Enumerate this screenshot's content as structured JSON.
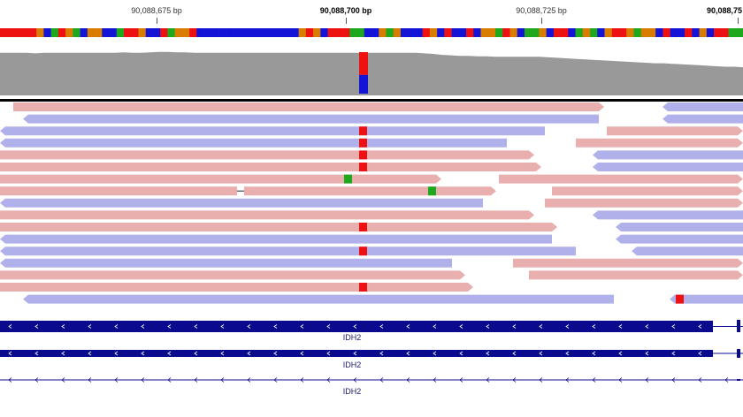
{
  "ruler": {
    "ticks": [
      {
        "label": "90,088,675 bp",
        "bold": false
      },
      {
        "label": "90,088,700 bp",
        "bold": true
      },
      {
        "label": "90,088,725 bp",
        "bold": false
      },
      {
        "label": "90,088,75",
        "bold": true
      }
    ]
  },
  "colors": {
    "base_A": "#1ea81e",
    "base_C": "#1414d6",
    "base_G": "#d97d00",
    "base_T": "#ee1111",
    "coverage": "#999999",
    "read_forward": "#e9aeae",
    "read_reverse": "#b0b0ea",
    "gene": "#0a0a8e"
  },
  "reference_sequence": "TTTTTGCATGACGGCCATTGCCTAGGTCCCCCCCCCCCCCCGTGCTTTAACCGAGCCCTGCTCCTCGGATGCAAGCTTCAGACGTTGAGGCTCCTCGCTTAA",
  "coverage_levels": [
    0.86,
    0.86,
    0.86,
    0.86,
    0.85,
    0.86,
    0.86,
    0.86,
    0.86,
    0.86,
    0.86,
    0.86,
    0.86,
    0.86,
    0.87,
    0.86,
    0.86,
    0.87,
    0.88,
    0.88,
    0.87,
    0.87,
    0.86,
    0.86,
    0.86,
    0.86,
    0.86,
    0.86,
    0.86,
    0.86,
    0.86,
    0.86,
    0.86,
    0.86,
    0.86,
    0.86,
    0.86,
    0.86,
    0.86,
    0.86,
    0.86,
    0.86,
    0.86,
    0.86,
    0.86,
    0.86,
    0.86,
    0.86,
    0.85,
    0.84,
    0.82,
    0.81,
    0.8,
    0.8,
    0.79,
    0.79,
    0.78,
    0.78,
    0.78,
    0.78,
    0.78,
    0.78,
    0.77,
    0.76,
    0.75,
    0.74,
    0.73,
    0.72,
    0.71,
    0.7,
    0.69,
    0.68,
    0.67,
    0.66,
    0.65,
    0.65,
    0.64,
    0.63,
    0.62,
    0.61,
    0.6,
    0.59,
    0.58,
    0.58,
    0.57
  ],
  "coverage_variant": {
    "alt_fraction": 0.45,
    "ref_fraction": 0.55
  },
  "genes": [
    {
      "name": "IDH2",
      "style": "thick"
    },
    {
      "name": "IDH2",
      "style": "medium"
    },
    {
      "name": "IDH2",
      "style": "thin"
    }
  ]
}
